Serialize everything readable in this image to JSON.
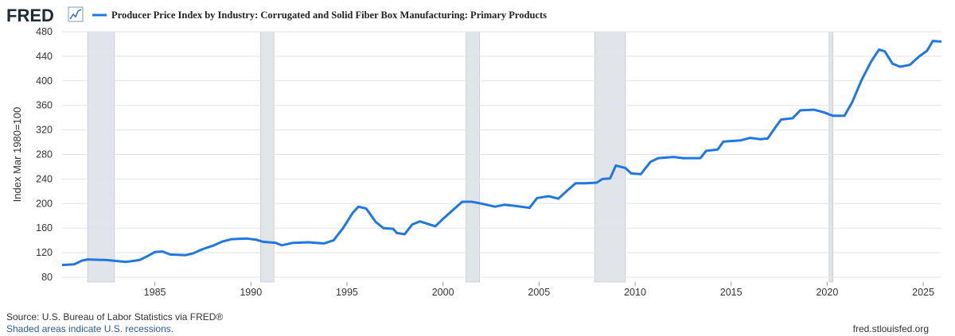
{
  "header": {
    "logo": "FRED"
  },
  "chart_data": {
    "type": "line",
    "series": [
      {
        "name": "Producer Price Index by Industry: Corrugated and Solid Fiber Box Manufacturing: Primary Products",
        "color": "#1f77e0",
        "values": [
          100,
          101,
          107,
          109,
          108,
          105,
          108,
          114,
          121,
          122,
          117,
          116,
          119,
          126,
          131,
          138,
          142,
          143,
          141,
          138,
          136,
          132,
          136,
          137,
          135,
          140,
          160,
          185,
          195,
          192,
          170,
          160,
          159,
          152,
          150,
          166,
          171,
          166,
          163,
          175,
          189,
          203,
          203,
          200,
          195,
          198,
          196,
          193,
          209,
          212,
          208,
          222,
          233,
          233,
          234,
          240,
          241,
          262,
          258,
          249,
          248,
          268,
          274,
          276,
          274,
          274,
          286,
          288,
          301,
          303,
          307,
          305,
          306,
          324,
          337,
          339,
          352,
          353,
          349,
          343,
          343,
          365,
          402,
          432,
          451,
          448,
          428,
          423,
          426,
          440,
          449,
          465,
          464
        ]
      }
    ],
    "x": [
      1980.17,
      1980.8,
      1981.2,
      1981.5,
      1982.5,
      1983.5,
      1984.2,
      1984.6,
      1985.0,
      1985.4,
      1985.8,
      1986.6,
      1987.0,
      1987.5,
      1988.0,
      1988.5,
      1989.0,
      1989.8,
      1990.3,
      1990.6,
      1991.3,
      1991.6,
      1992.2,
      1993.0,
      1993.8,
      1994.3,
      1994.8,
      1995.3,
      1995.6,
      1996.0,
      1996.5,
      1996.9,
      1997.4,
      1997.6,
      1998.0,
      1998.4,
      1998.8,
      1999.3,
      1999.6,
      2000.0,
      2000.5,
      2001.0,
      2001.5,
      2002.0,
      2002.7,
      2003.2,
      2003.8,
      2004.5,
      2004.9,
      2005.5,
      2006.0,
      2006.5,
      2006.9,
      2007.4,
      2008.0,
      2008.3,
      2008.7,
      2009.0,
      2009.5,
      2009.8,
      2010.3,
      2010.8,
      2011.2,
      2012.0,
      2012.5,
      2013.4,
      2013.7,
      2014.3,
      2014.6,
      2015.5,
      2016.0,
      2016.5,
      2016.9,
      2017.3,
      2017.6,
      2018.2,
      2018.6,
      2019.3,
      2019.8,
      2020.3,
      2020.9,
      2021.3,
      2021.8,
      2022.3,
      2022.7,
      2023.0,
      2023.4,
      2023.8,
      2024.3,
      2024.8,
      2025.2,
      2025.5,
      2025.95
    ],
    "xlim": [
      1980.17,
      2025.95
    ],
    "xticks": [
      1985,
      1990,
      1995,
      2000,
      2005,
      2010,
      2015,
      2020,
      2025
    ],
    "ylim": [
      80,
      480
    ],
    "yticks": [
      80,
      120,
      160,
      200,
      240,
      280,
      320,
      360,
      400,
      440,
      480
    ],
    "y_label": "Index Mar 1980=100",
    "recessions": [
      [
        1981.5,
        1982.9
      ],
      [
        1990.5,
        1991.2
      ],
      [
        2001.2,
        2001.9
      ],
      [
        2007.9,
        2009.5
      ],
      [
        2020.1,
        2020.3
      ]
    ],
    "grid": true
  },
  "footer": {
    "source": "Source: U.S. Bureau of Labor Statistics via FRED®",
    "note": "Shaded areas indicate U.S. recessions.",
    "url": "fred.stlouisfed.org"
  }
}
